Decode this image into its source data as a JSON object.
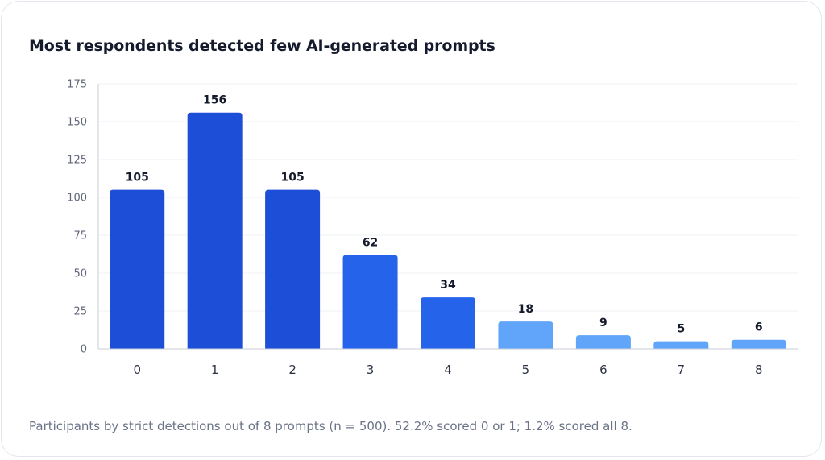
{
  "chart_data": {
    "type": "bar",
    "title": "Most respondents detected few AI-generated prompts",
    "caption": "Participants by strict detections out of 8 prompts (n = 500). 52.2% scored 0 or 1; 1.2% scored all 8.",
    "categories": [
      "0",
      "1",
      "2",
      "3",
      "4",
      "5",
      "6",
      "7",
      "8"
    ],
    "values": [
      105,
      156,
      105,
      62,
      34,
      18,
      9,
      5,
      6
    ],
    "value_labels": [
      "105",
      "156",
      "105",
      "62",
      "34",
      "18",
      "9",
      "5",
      "6"
    ],
    "bar_colors": [
      "#1d4ed8",
      "#1d4ed8",
      "#1d4ed8",
      "#2563eb",
      "#2563eb",
      "#60a5fa",
      "#60a5fa",
      "#60a5fa",
      "#60a5fa"
    ],
    "ylim": [
      0,
      175
    ],
    "yticks": [
      0,
      25,
      50,
      75,
      100,
      125,
      150,
      175
    ],
    "ytick_labels": [
      "0",
      "25",
      "50",
      "75",
      "100",
      "125",
      "150",
      "175"
    ],
    "grid": true,
    "xlabel": "",
    "ylabel": ""
  }
}
